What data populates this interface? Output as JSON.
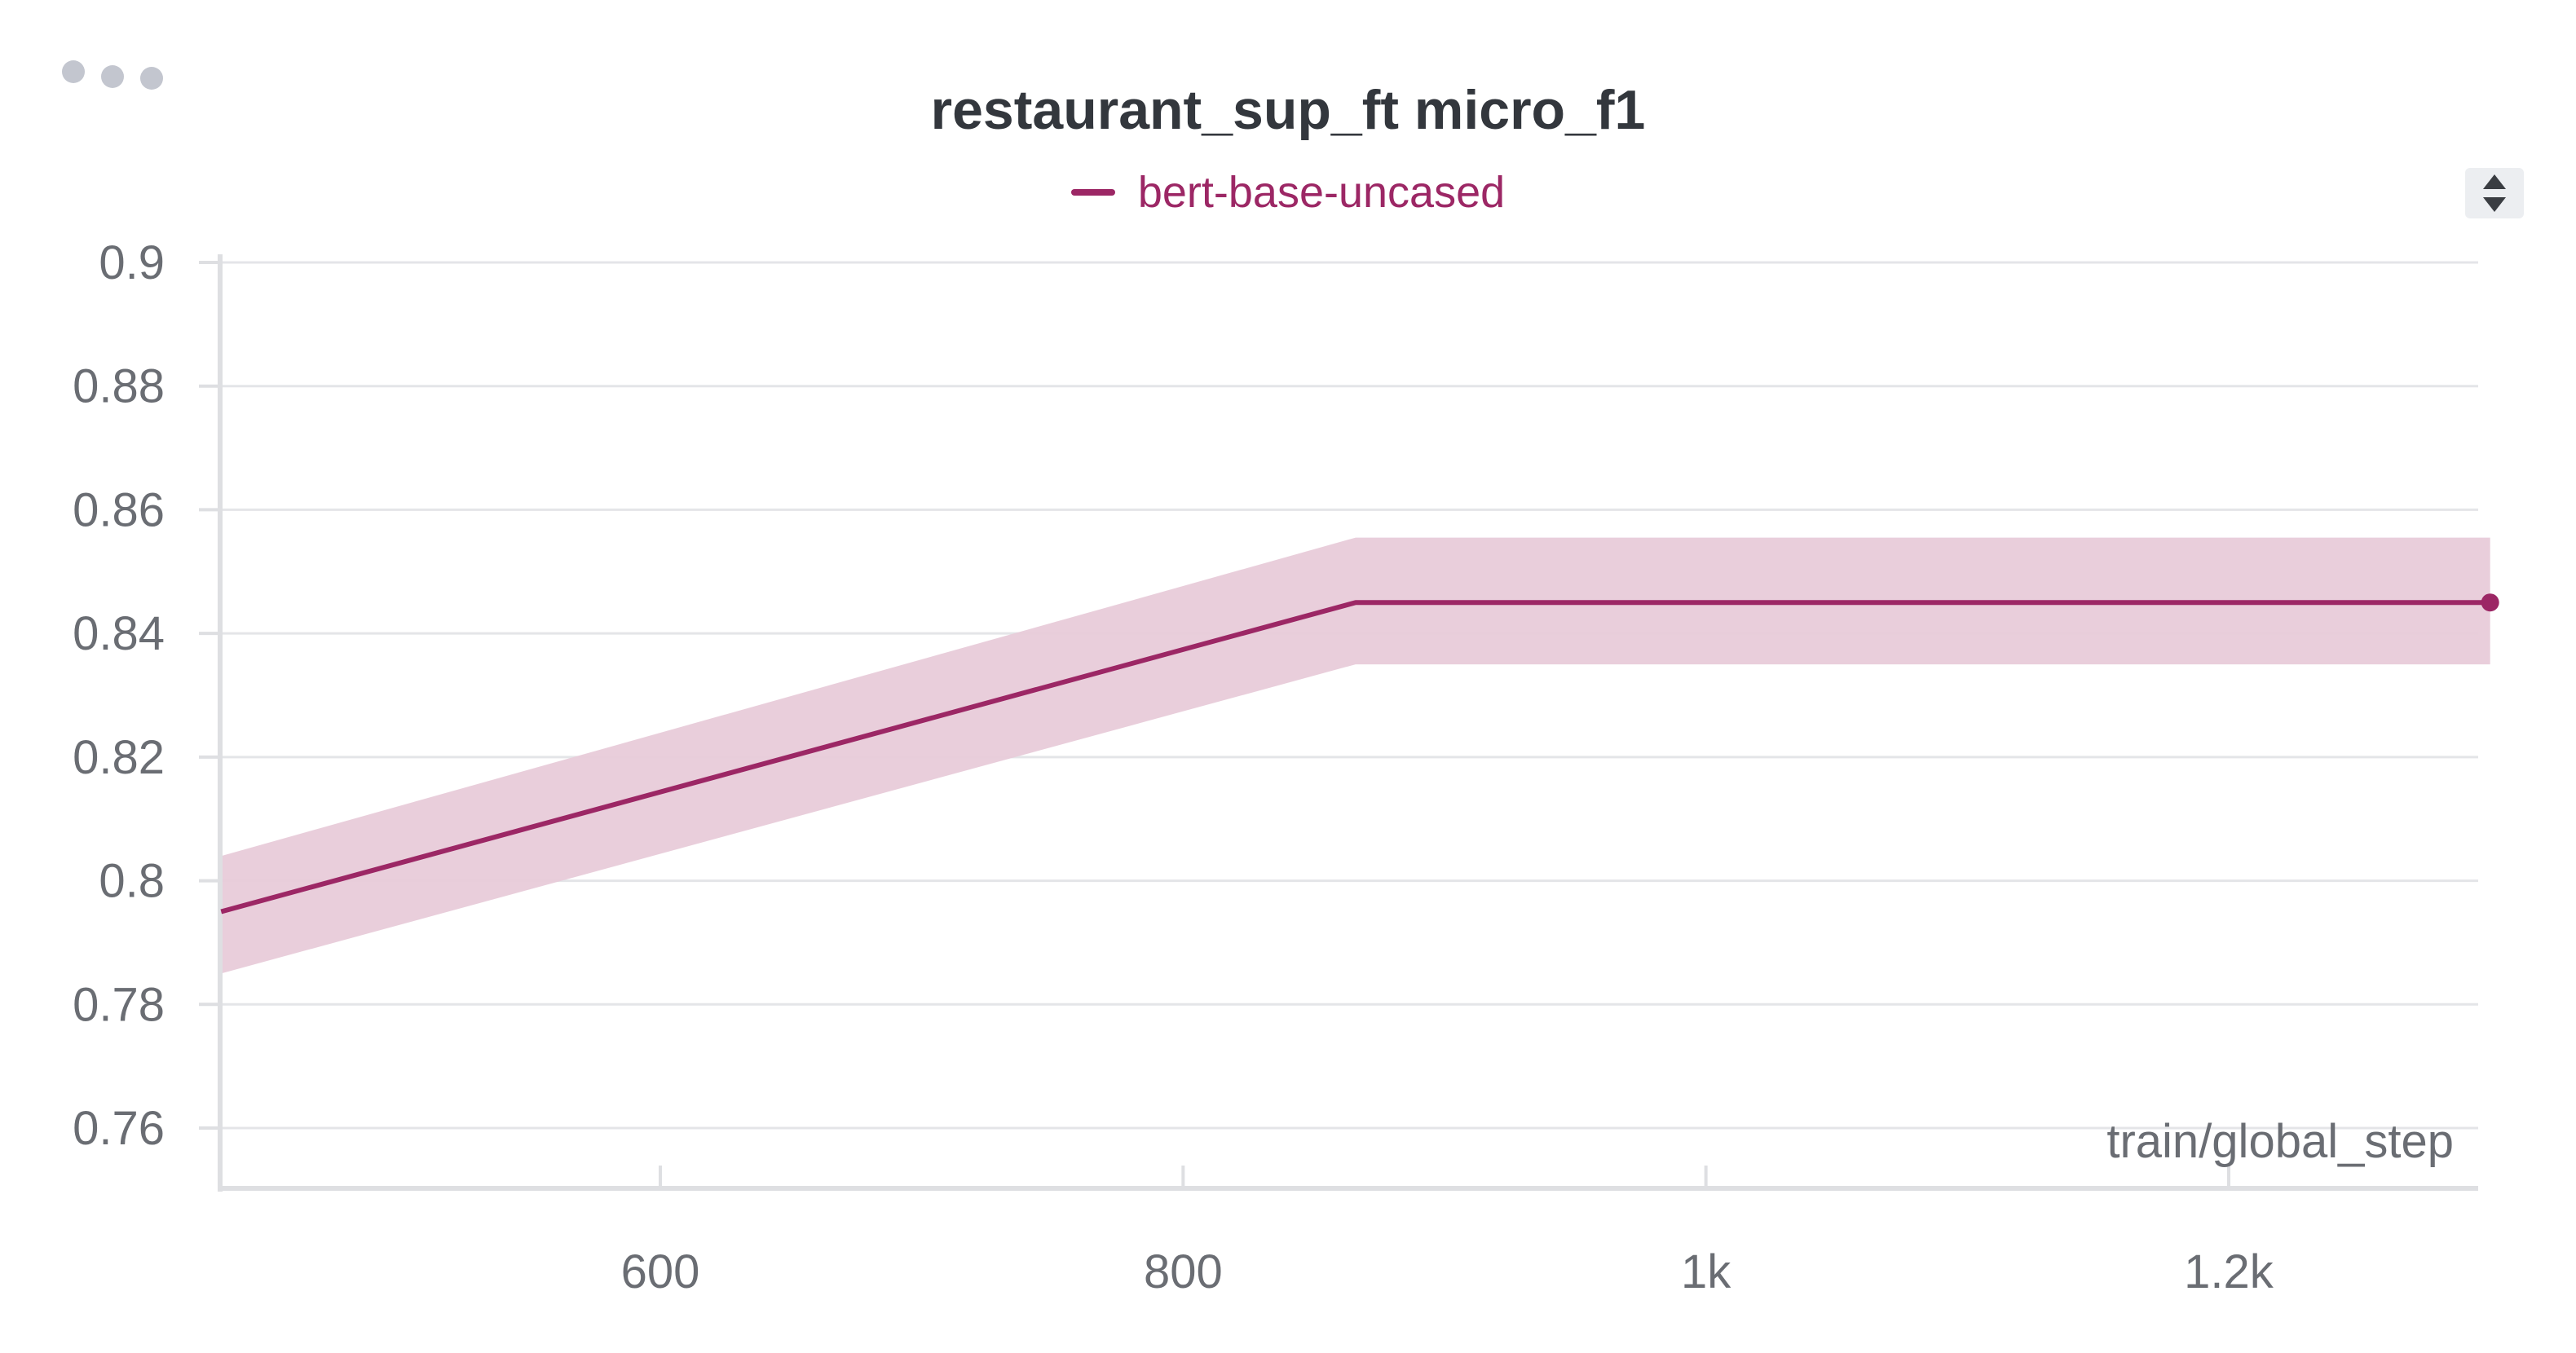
{
  "panel": {
    "menu_icon": "more-horizontal-icon",
    "scroll_icon": "sort-updown-icon"
  },
  "chart_data": {
    "type": "line",
    "title": "restaurant_sup_ft micro_f1",
    "xlabel": "train/global_step",
    "ylabel": "",
    "xlim": [
      430,
      1300
    ],
    "ylim": [
      0.75,
      0.9
    ],
    "x_ticks": [
      {
        "value": 600,
        "label": "600"
      },
      {
        "value": 800,
        "label": "800"
      },
      {
        "value": 1000,
        "label": "1k"
      },
      {
        "value": 1200,
        "label": "1.2k"
      }
    ],
    "y_ticks": [
      {
        "value": 0.76,
        "label": "0.76"
      },
      {
        "value": 0.78,
        "label": "0.78"
      },
      {
        "value": 0.8,
        "label": "0.8"
      },
      {
        "value": 0.82,
        "label": "0.82"
      },
      {
        "value": 0.84,
        "label": "0.84"
      },
      {
        "value": 0.86,
        "label": "0.86"
      },
      {
        "value": 0.88,
        "label": "0.88"
      },
      {
        "value": 0.9,
        "label": "0.9"
      }
    ],
    "grid": true,
    "legend_position": "top-center",
    "series": [
      {
        "name": "bert-base-uncased",
        "color": "#9c2765",
        "band_color": "#e8cbd9",
        "x": [
          432,
          866,
          1300
        ],
        "y": [
          0.795,
          0.845,
          0.845
        ],
        "upper": [
          0.804,
          0.8555,
          0.8555
        ],
        "lower": [
          0.785,
          0.835,
          0.835
        ]
      }
    ]
  }
}
